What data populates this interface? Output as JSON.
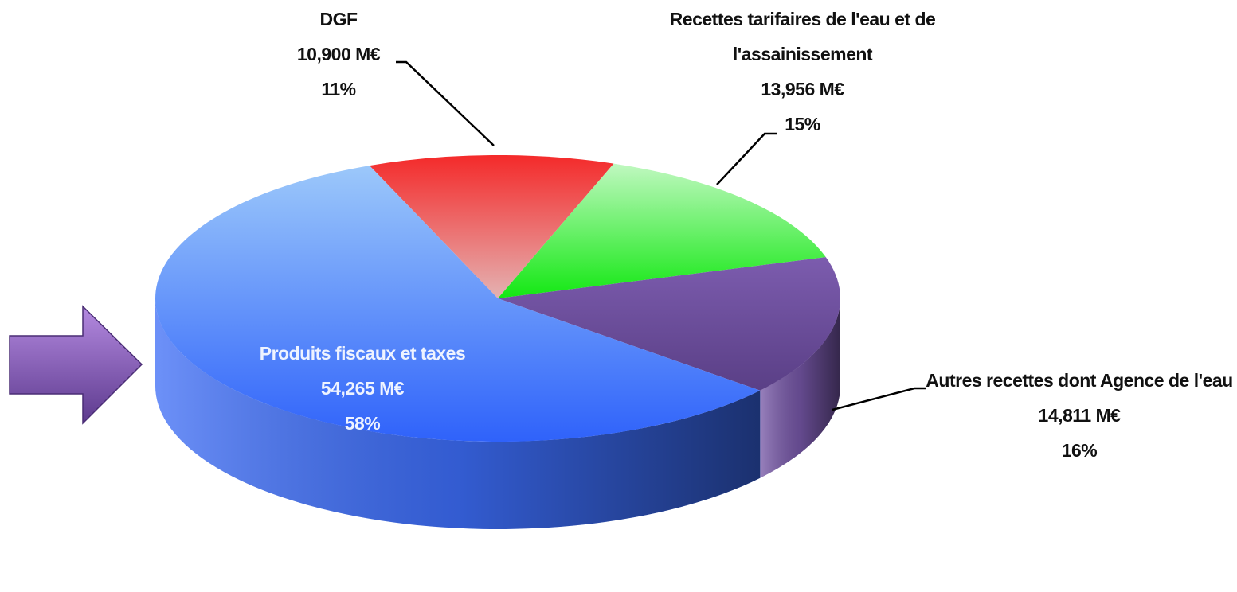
{
  "chart_data": {
    "type": "pie3d",
    "categories": [
      "DGF",
      "Recettes tarifaires de l'eau et de l'assainissement",
      "Autres recettes dont Agence de l'eau",
      "Produits fiscaux et taxes"
    ],
    "values": [
      10.9,
      13.956,
      14.811,
      54.265
    ],
    "value_labels": [
      "10,900 M€",
      "13,956 M€",
      "14,811 M€",
      "54,265 M€"
    ],
    "percents": [
      11,
      15,
      16,
      58
    ],
    "percent_labels": [
      "11%",
      "15%",
      "16%",
      "58%"
    ],
    "colors": [
      "#f43030",
      "#3de83d",
      "#7556a6",
      "#3c6cf6"
    ]
  }
}
